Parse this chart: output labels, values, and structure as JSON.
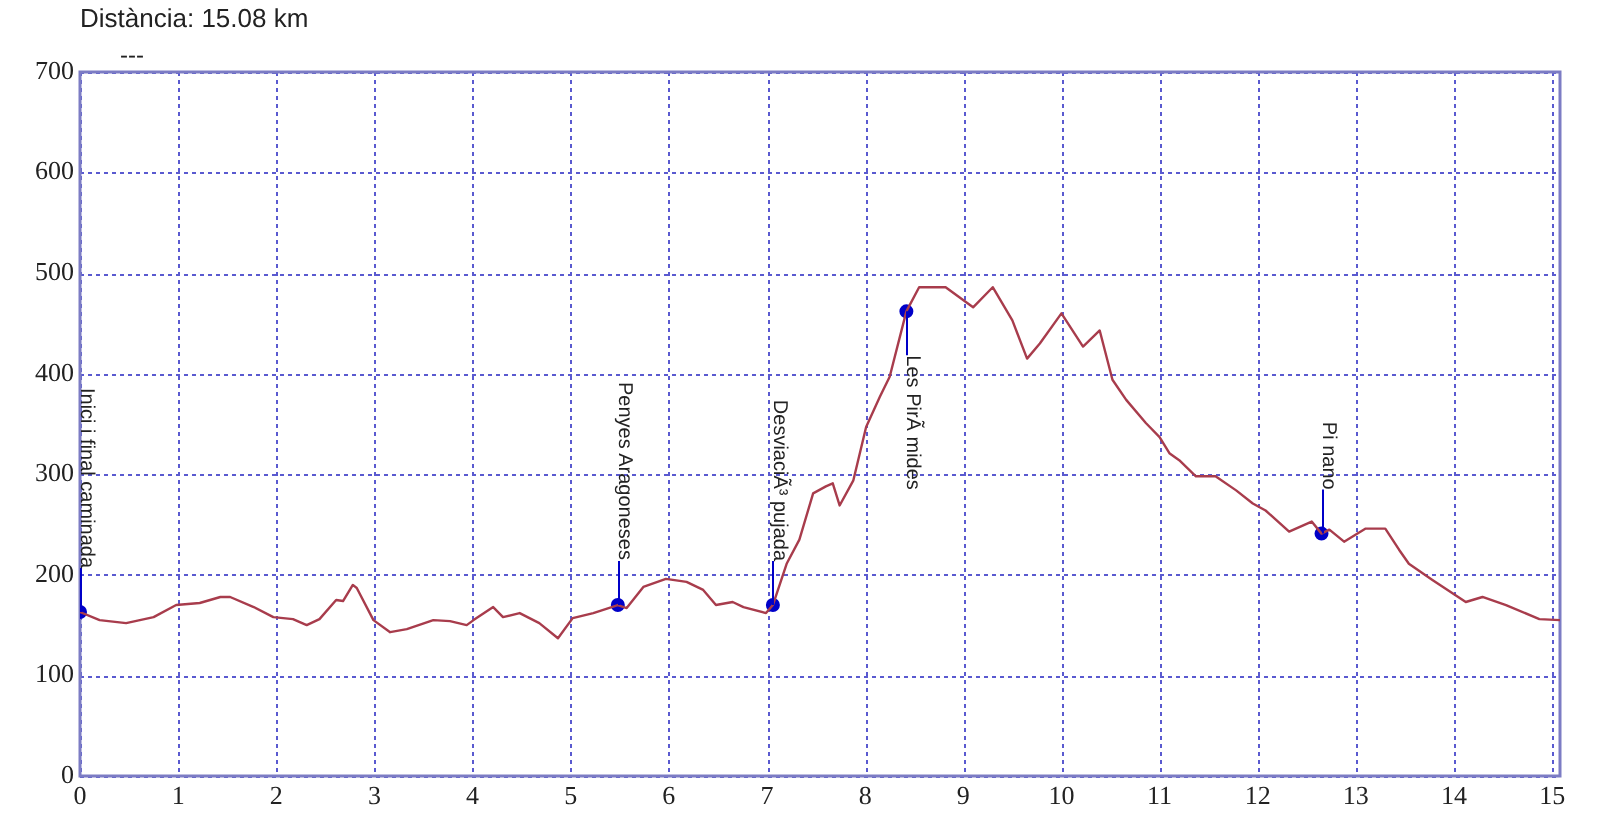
{
  "chart_data": {
    "type": "line",
    "subtitle": "Distància: 15.08 km",
    "annotations": [
      "---",
      {
        "text": "Inici i final caminada",
        "x": 0,
        "y": 163
      },
      {
        "text": "Penyes Aragoneses",
        "x": 5.48,
        "y": 170
      },
      {
        "text": "DesviaciÃ³ pujada",
        "x": 7.06,
        "y": 170
      },
      {
        "text": "Les PirÃ mides",
        "x": 8.42,
        "y": 462
      },
      {
        "text": "Pi nano",
        "x": 12.65,
        "y": 241
      }
    ],
    "x": [
      0,
      0.2,
      0.47,
      0.75,
      0.98,
      1.22,
      1.43,
      1.53,
      1.77,
      1.97,
      2.17,
      2.31,
      2.44,
      2.61,
      2.68,
      2.78,
      2.82,
      2.99,
      3.16,
      3.33,
      3.6,
      3.77,
      3.94,
      4.01,
      4.21,
      4.31,
      4.48,
      4.68,
      4.87,
      5.02,
      5.23,
      5.48,
      5.57,
      5.74,
      5.97,
      6.18,
      6.35,
      6.48,
      6.65,
      6.76,
      6.99,
      7.06,
      7.2,
      7.33,
      7.47,
      7.6,
      7.67,
      7.74,
      7.88,
      8.01,
      8.15,
      8.25,
      8.42,
      8.55,
      8.82,
      9.1,
      9.3,
      9.5,
      9.65,
      9.78,
      10.0,
      10.22,
      10.39,
      10.52,
      10.66,
      10.86,
      11.0,
      11.1,
      11.2,
      11.37,
      11.57,
      11.78,
      11.95,
      12.08,
      12.32,
      12.55,
      12.65,
      12.73,
      12.88,
      13.1,
      13.3,
      13.44,
      13.54,
      13.78,
      14.12,
      14.29,
      14.53,
      14.87,
      15.08
    ],
    "series": [
      {
        "color": "#a83c4c",
        "values": [
          163,
          155,
          152,
          158,
          170,
          172,
          178,
          178,
          168,
          158,
          156,
          150,
          156,
          175,
          174,
          190,
          187,
          155,
          143,
          146,
          155,
          154,
          150,
          155,
          168,
          158,
          162,
          152,
          137,
          157,
          162,
          170,
          167,
          188,
          196,
          193,
          185,
          170,
          173,
          168,
          162,
          170,
          211,
          235,
          281,
          288,
          291,
          269,
          294,
          347,
          377,
          397,
          462,
          486,
          486,
          466,
          486,
          453,
          415,
          430,
          460,
          427,
          443,
          394,
          374,
          351,
          337,
          321,
          314,
          298,
          298,
          284,
          271,
          264,
          243,
          253,
          241,
          245,
          233,
          246,
          246,
          225,
          211,
          195,
          173,
          178,
          170,
          156,
          155
        ]
      },
      {
        "type": "scatter",
        "color": "#0000c8",
        "marker": "circle",
        "x": [
          0,
          5.48,
          7.06,
          8.42,
          12.65
        ],
        "values": [
          163,
          170,
          170,
          462,
          241
        ]
      }
    ],
    "xlim": [
      0,
      15.08
    ],
    "ylim": [
      0,
      700
    ],
    "xticks": [
      0,
      1,
      2,
      3,
      4,
      5,
      6,
      7,
      8,
      9,
      10,
      11,
      12,
      13,
      14,
      15
    ],
    "yticks": [
      0,
      100,
      200,
      300,
      400,
      500,
      600,
      700
    ],
    "grid": true,
    "marker": "none",
    "line_style": "solid"
  }
}
